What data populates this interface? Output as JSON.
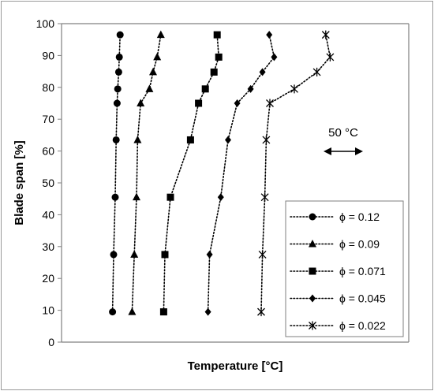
{
  "chart_data": {
    "type": "line",
    "title": "",
    "xlabel": "Temperature [°C]",
    "ylabel": "Blade span [%]",
    "ylim": [
      0,
      100
    ],
    "yticks": [
      "0",
      "10",
      "20",
      "30",
      "40",
      "50",
      "60",
      "70",
      "80",
      "90",
      "100"
    ],
    "x_units": "relative temperature, °C (no tick labels shown)",
    "xlim": [
      0,
      300
    ],
    "grid": false,
    "legend_position": "bottom-right",
    "scale_annotation": "50 °C",
    "scale_annotation_value": 50,
    "series": [
      {
        "name": "ϕ = 0.12",
        "marker": "circle",
        "points": [
          [
            9.6,
            9.5
          ],
          [
            11,
            27.5
          ],
          [
            13,
            45.5
          ],
          [
            14.2,
            63.5
          ],
          [
            15.4,
            75
          ],
          [
            16.2,
            79.5
          ],
          [
            17.4,
            84.8
          ],
          [
            18.2,
            89.5
          ],
          [
            19.2,
            96.5
          ]
        ]
      },
      {
        "name": "ϕ = 0.09",
        "marker": "triangle",
        "points": [
          [
            34.4,
            9.5
          ],
          [
            37.2,
            27.5
          ],
          [
            40,
            45.5
          ],
          [
            41.4,
            63.5
          ],
          [
            45.2,
            75
          ],
          [
            56.4,
            79.5
          ],
          [
            61,
            84.8
          ],
          [
            66.2,
            89.5
          ],
          [
            70.8,
            96.5
          ]
        ]
      },
      {
        "name": "ϕ = 0.071",
        "marker": "square",
        "points": [
          [
            74.4,
            9.5
          ],
          [
            76,
            27.5
          ],
          [
            83,
            45.5
          ],
          [
            108.4,
            63.5
          ],
          [
            118.6,
            75
          ],
          [
            127.2,
            79.5
          ],
          [
            138.2,
            84.8
          ],
          [
            144.2,
            89.5
          ],
          [
            142.2,
            96.5
          ]
        ]
      },
      {
        "name": "ϕ = 0.045",
        "marker": "diamond",
        "points": [
          [
            130.6,
            9.5
          ],
          [
            132.6,
            27.5
          ],
          [
            146.8,
            45.5
          ],
          [
            156,
            63.5
          ],
          [
            167.6,
            75
          ],
          [
            184.6,
            79.5
          ],
          [
            199.6,
            84.8
          ],
          [
            214.4,
            89.5
          ],
          [
            208.2,
            96.5
          ]
        ]
      },
      {
        "name": "ϕ =  0.022",
        "marker": "star",
        "points": [
          [
            198,
            9.5
          ],
          [
            199.6,
            27.5
          ],
          [
            202.6,
            45.5
          ],
          [
            204.4,
            63.5
          ],
          [
            209,
            75
          ],
          [
            240,
            79.5
          ],
          [
            268.6,
            84.8
          ],
          [
            285.4,
            89.5
          ],
          [
            279.8,
            96.5
          ]
        ]
      }
    ]
  }
}
